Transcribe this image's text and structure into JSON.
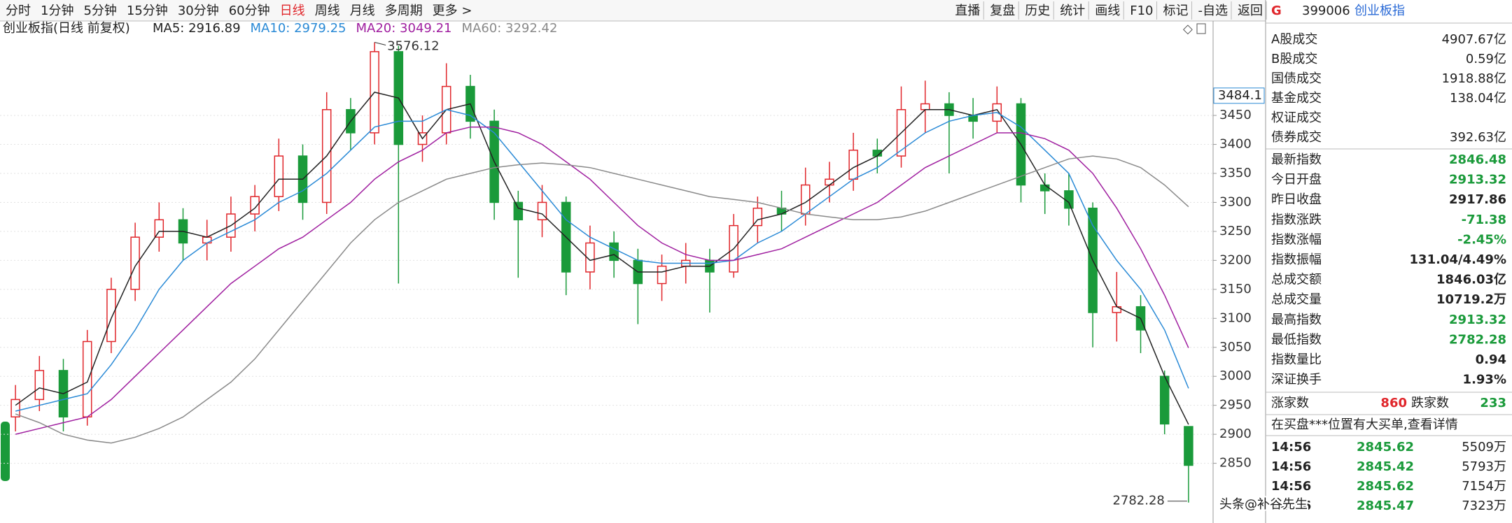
{
  "toolbar": {
    "periods": [
      "分时",
      "1分钟",
      "5分钟",
      "15分钟",
      "30分钟",
      "60分钟",
      "日线",
      "周线",
      "月线",
      "多周期",
      "更多 >"
    ],
    "active_period": 6,
    "active_color": "#e0262b",
    "tools": [
      "直播",
      "复盘",
      "历史",
      "统计",
      "画线",
      "F10",
      "标记",
      "-自选",
      "返回"
    ]
  },
  "chart_data": {
    "type": "candlestick",
    "title": "创业板指(日线 前复权)",
    "open": [
      2930,
      2960,
      3010,
      2930,
      3060,
      3150,
      3240,
      3270,
      3230,
      3240,
      3280,
      3310,
      3380,
      3300,
      3460,
      3420,
      3560,
      3400,
      3420,
      3500,
      3440,
      3300,
      3270,
      3300,
      3180,
      3230,
      3200,
      3160,
      3190,
      3200,
      3180,
      3260,
      3290,
      3280,
      3330,
      3340,
      3390,
      3380,
      3460,
      3470,
      3450,
      3440,
      3470,
      3330,
      3320,
      3290,
      3110,
      3120,
      3000,
      2913.32
    ],
    "high": [
      2985,
      3035,
      3030,
      3080,
      3170,
      3265,
      3300,
      3290,
      3270,
      3310,
      3330,
      3410,
      3400,
      3490,
      3480,
      3576.12,
      3570,
      3450,
      3540,
      3520,
      3460,
      3320,
      3330,
      3310,
      3260,
      3250,
      3220,
      3210,
      3230,
      3220,
      3280,
      3310,
      3320,
      3360,
      3370,
      3420,
      3410,
      3500,
      3510,
      3490,
      3480,
      3500,
      3480,
      3350,
      3350,
      3300,
      3180,
      3140,
      3010,
      2913.32
    ],
    "low": [
      2905,
      2940,
      2905,
      2915,
      3040,
      3130,
      3215,
      3200,
      3200,
      3215,
      3250,
      3285,
      3270,
      3280,
      3390,
      3400,
      3160,
      3370,
      3400,
      3410,
      3270,
      3170,
      3240,
      3140,
      3150,
      3170,
      3090,
      3130,
      3160,
      3110,
      3170,
      3230,
      3250,
      3260,
      3300,
      3320,
      3350,
      3360,
      3420,
      3350,
      3410,
      3420,
      3300,
      3280,
      3260,
      3050,
      3060,
      3040,
      2900,
      2782.28
    ],
    "close": [
      2960,
      3010,
      2930,
      3060,
      3150,
      3240,
      3270,
      3230,
      3240,
      3280,
      3310,
      3380,
      3300,
      3460,
      3420,
      3560,
      3400,
      3420,
      3500,
      3440,
      3300,
      3270,
      3300,
      3180,
      3230,
      3200,
      3160,
      3190,
      3200,
      3180,
      3260,
      3290,
      3280,
      3330,
      3340,
      3390,
      3380,
      3460,
      3470,
      3450,
      3440,
      3470,
      3330,
      3320,
      3290,
      3110,
      3120,
      3080,
      2917.86,
      2846.48
    ],
    "up_color": "#e0262b",
    "down_color": "#1a9a3a",
    "series": [
      {
        "name": "MA5: 2916.89",
        "color": "#222222",
        "values": [
          2950,
          2980,
          2970,
          2990,
          3100,
          3190,
          3250,
          3250,
          3240,
          3260,
          3290,
          3340,
          3340,
          3380,
          3440,
          3490,
          3480,
          3410,
          3460,
          3470,
          3370,
          3290,
          3280,
          3240,
          3200,
          3210,
          3180,
          3180,
          3190,
          3190,
          3220,
          3270,
          3280,
          3300,
          3330,
          3360,
          3380,
          3420,
          3460,
          3460,
          3450,
          3460,
          3400,
          3330,
          3300,
          3200,
          3120,
          3100,
          3000,
          2916.89
        ]
      },
      {
        "name": "MA10: 2979.25",
        "color": "#2a8ad6",
        "values": [
          2940,
          2950,
          2960,
          2970,
          3020,
          3080,
          3150,
          3200,
          3230,
          3250,
          3270,
          3300,
          3320,
          3350,
          3390,
          3430,
          3440,
          3440,
          3460,
          3450,
          3420,
          3370,
          3320,
          3270,
          3240,
          3220,
          3200,
          3195,
          3195,
          3195,
          3200,
          3230,
          3250,
          3280,
          3310,
          3340,
          3360,
          3390,
          3420,
          3440,
          3450,
          3455,
          3430,
          3390,
          3350,
          3260,
          3200,
          3150,
          3080,
          2979.25
        ]
      },
      {
        "name": "MA20: 3049.21",
        "color": "#a020a0",
        "values": [
          2900,
          2910,
          2920,
          2930,
          2960,
          3000,
          3040,
          3080,
          3120,
          3160,
          3190,
          3220,
          3240,
          3270,
          3300,
          3340,
          3370,
          3390,
          3420,
          3430,
          3430,
          3420,
          3400,
          3370,
          3340,
          3300,
          3260,
          3230,
          3210,
          3200,
          3200,
          3210,
          3220,
          3240,
          3260,
          3280,
          3300,
          3330,
          3360,
          3380,
          3400,
          3420,
          3420,
          3410,
          3390,
          3350,
          3290,
          3220,
          3140,
          3049.21
        ]
      },
      {
        "name": "MA60: 3292.42",
        "color": "#8a8a8a",
        "values": [
          2935,
          2920,
          2900,
          2890,
          2885,
          2895,
          2910,
          2930,
          2960,
          2990,
          3030,
          3080,
          3130,
          3180,
          3230,
          3270,
          3300,
          3320,
          3340,
          3350,
          3360,
          3365,
          3368,
          3365,
          3360,
          3350,
          3340,
          3330,
          3320,
          3310,
          3305,
          3300,
          3290,
          3280,
          3275,
          3270,
          3270,
          3275,
          3285,
          3300,
          3315,
          3330,
          3345,
          3360,
          3375,
          3380,
          3375,
          3360,
          3330,
          3292.42
        ]
      }
    ],
    "ylim": [
      2750,
      3590
    ],
    "yticks": [
      2850,
      2900,
      2950,
      3000,
      3050,
      3100,
      3150,
      3200,
      3250,
      3300,
      3350,
      3400,
      3450
    ],
    "grid": true,
    "cursor_value": 3484.1
  },
  "quote_panel": {
    "code_prefix": "G",
    "code": "399006",
    "name": "创业板指",
    "volume_rows": [
      {
        "label": "A股成交",
        "value": "4907.67亿"
      },
      {
        "label": "B股成交",
        "value": "0.59亿"
      },
      {
        "label": "国债成交",
        "value": "1918.88亿"
      },
      {
        "label": "基金成交",
        "value": "138.04亿"
      },
      {
        "label": "权证成交"
      },
      {
        "label": "债券成交",
        "value": "392.63亿"
      }
    ],
    "index_rows": [
      {
        "label": "最新指数",
        "value": "2846.48",
        "color": "#1a9a3a"
      },
      {
        "label": "今日开盘",
        "value": "2913.32",
        "color": "#1a9a3a"
      },
      {
        "label": "昨日收盘",
        "value": "2917.86"
      },
      {
        "label": "指数涨跌",
        "value": "-71.38",
        "color": "#1a9a3a"
      },
      {
        "label": "指数涨幅",
        "value": "-2.45%",
        "color": "#1a9a3a"
      },
      {
        "label": "指数振幅",
        "value": "131.04/4.49%"
      },
      {
        "label": "总成交额",
        "value": "1846.03亿"
      },
      {
        "label": "总成交量",
        "value": "10719.2万"
      },
      {
        "label": "最高指数",
        "value": "2913.32",
        "color": "#1a9a3a"
      },
      {
        "label": "最低指数",
        "value": "2782.28",
        "color": "#1a9a3a"
      },
      {
        "label": "指数量比",
        "value": "0.94"
      },
      {
        "label": "深证换手",
        "value": "1.93%"
      }
    ],
    "breadth": {
      "up_label": "涨家数",
      "up_value": "860",
      "up_color": "#e0262b",
      "down_label": "跌家数",
      "down_value": "233",
      "down_color": "#1a9a3a"
    },
    "notice": "在买盘***位置有大买单,查看详情",
    "trades": [
      {
        "time": "14:56",
        "price": "2845.62",
        "volume": "5509万"
      },
      {
        "time": "14:56",
        "price": "2845.42",
        "volume": "5793万"
      },
      {
        "time": "14:56",
        "price": "2845.62",
        "volume": "7154万"
      },
      {
        "time": "14:56",
        "price": "2845.47",
        "volume": "7323万"
      }
    ],
    "trade_price_color": "#1a9a3a"
  },
  "watermark": "头条@补谷先生"
}
